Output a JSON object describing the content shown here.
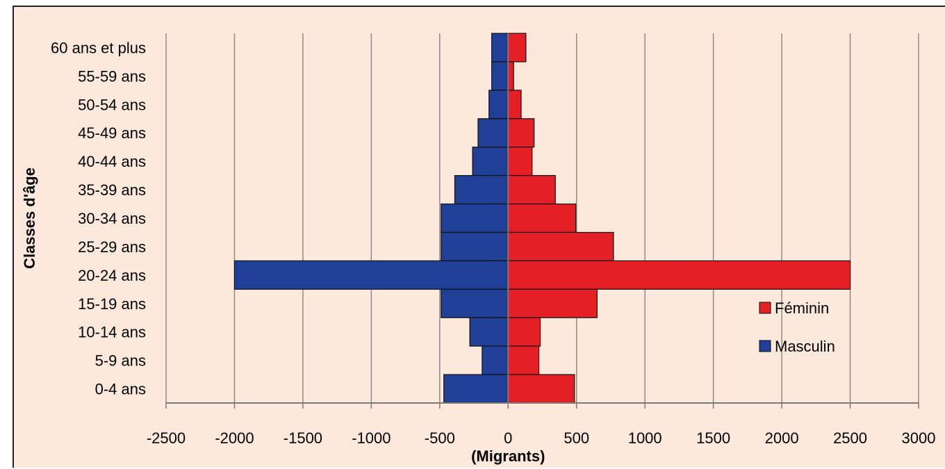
{
  "chart_data": {
    "type": "bar",
    "orientation": "horizontal",
    "categories": [
      "60 ans et plus",
      "55-59 ans",
      "50-54 ans",
      "45-49 ans",
      "40-44 ans",
      "35-39 ans",
      "30-34 ans",
      "25-29 ans",
      "20-24 ans",
      "15-19 ans",
      "10-14 ans",
      "5-9 ans",
      "0-4 ans"
    ],
    "series": [
      {
        "name": "Féminin",
        "color": "#e41f26",
        "values": [
          130,
          40,
          95,
          190,
          175,
          345,
          495,
          770,
          2500,
          650,
          235,
          225,
          485
        ]
      },
      {
        "name": "Masculin",
        "color": "#203f96",
        "values": [
          -120,
          -120,
          -140,
          -220,
          -260,
          -390,
          -490,
          -490,
          -2000,
          -490,
          -280,
          -190,
          -470
        ]
      }
    ],
    "xlabel": "(Migrants)",
    "ylabel": "Classes d'âge",
    "xlim": [
      -2500,
      3000
    ],
    "xticks": [
      "-2500",
      "-2000",
      "-1500",
      "-1000",
      "-500",
      "0",
      "500",
      "1000",
      "1500",
      "2000",
      "2500",
      "3000"
    ],
    "grid": "vertical",
    "legend": "right"
  }
}
